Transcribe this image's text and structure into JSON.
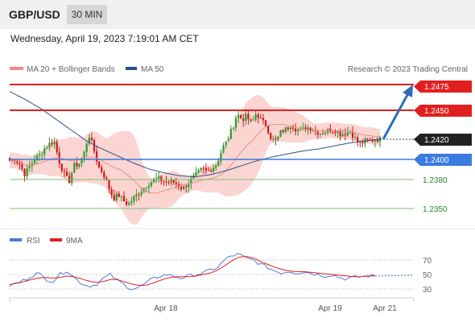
{
  "header": {
    "symbol": "GBP/USD",
    "timeframe": "30 MIN",
    "datetime": "Wednesday, April 19, 2023 7:19:01 AM CET"
  },
  "legend": {
    "ma20_bb": "MA 20 + Bollinger Bands",
    "ma50": "MA 50",
    "credit": "Research © 2023 Trading Central"
  },
  "colors": {
    "red_line": "#e02020",
    "blue_line": "#3a7be0",
    "green_line": "#7dbf73",
    "candle_up": "#2e9a2e",
    "candle_down": "#d01818",
    "bollinger": "#fbd5d2",
    "ma50": "#2d4f8a",
    "arrow": "#2f6db5",
    "rsi": "#4f7ad8",
    "rsi_ma": "#e02020"
  },
  "levels": {
    "r2": "1.2475",
    "r1": "1.2450",
    "current": "1.2420",
    "s1": "1.2400",
    "s2": "1.2380",
    "s3": "1.2350"
  },
  "rsi_panel": {
    "rsi_label": "RSI",
    "ma_label": "9MA",
    "ticks": [
      "70",
      "50",
      "30"
    ]
  },
  "chart_data": [
    {
      "type": "candlestick",
      "title": "GBP/USD",
      "timeframe": "30 MIN",
      "x_labels": [
        "Apr 18",
        "Apr 19",
        "Apr 21"
      ],
      "y_unit": "USD",
      "ylim": [
        1.2335,
        1.2485
      ],
      "horizontal_levels": [
        {
          "value": 1.2475,
          "kind": "resistance"
        },
        {
          "value": 1.245,
          "kind": "resistance"
        },
        {
          "value": 1.242,
          "kind": "current price"
        },
        {
          "value": 1.24,
          "kind": "pivot"
        },
        {
          "value": 1.238,
          "kind": "support"
        },
        {
          "value": 1.235,
          "kind": "support"
        }
      ],
      "projection": {
        "from": 1.242,
        "to": 1.2475
      },
      "close_path": [
        1.2398,
        1.24,
        1.2395,
        1.2385,
        1.2392,
        1.24,
        1.2403,
        1.241,
        1.2415,
        1.2418,
        1.2398,
        1.2385,
        1.2377,
        1.2393,
        1.2395,
        1.2404,
        1.2425,
        1.241,
        1.2392,
        1.2385,
        1.2372,
        1.236,
        1.2364,
        1.2358,
        1.2354,
        1.236,
        1.2365,
        1.237,
        1.2375,
        1.2378,
        1.238,
        1.2378,
        1.2376,
        1.2377,
        1.2374,
        1.237,
        1.2375,
        1.238,
        1.2385,
        1.239,
        1.2387,
        1.2391,
        1.2395,
        1.241,
        1.2418,
        1.243,
        1.2445,
        1.244,
        1.2443,
        1.2435,
        1.2447,
        1.2438,
        1.2434,
        1.242,
        1.2418,
        1.2428,
        1.243,
        1.2435,
        1.243,
        1.2428,
        1.2432,
        1.2431,
        1.2428,
        1.2426,
        1.2428,
        1.243,
        1.2429,
        1.2425,
        1.2426,
        1.2428,
        1.242,
        1.2415,
        1.2418,
        1.2418,
        1.242,
        1.242
      ],
      "ma50_path": [
        1.2468,
        1.246,
        1.2451,
        1.244,
        1.2429,
        1.2418,
        1.241,
        1.2403,
        1.2396,
        1.239,
        1.2386,
        1.2383,
        1.2382,
        1.2384,
        1.2388,
        1.2393,
        1.2398,
        1.2402,
        1.2405,
        1.2408,
        1.241,
        1.2413,
        1.2416,
        1.2418,
        1.242
      ]
    },
    {
      "type": "line",
      "title": "RSI",
      "series": [
        {
          "name": "RSI"
        },
        {
          "name": "9MA"
        }
      ],
      "yticks": [
        70,
        50,
        30
      ],
      "x_labels": [
        "Apr 18",
        "Apr 19",
        "Apr 21"
      ],
      "rsi_path": [
        35,
        38,
        42,
        48,
        52,
        44,
        40,
        50,
        56,
        46,
        38,
        34,
        36,
        44,
        50,
        42,
        36,
        30,
        32,
        38,
        44,
        48,
        50,
        47,
        45,
        48,
        50,
        52,
        56,
        60,
        70,
        76,
        78,
        72,
        70,
        64,
        60,
        55,
        52,
        55,
        52,
        54,
        52,
        50,
        48,
        50,
        46,
        44,
        46,
        47,
        48,
        48
      ],
      "ma_path": [
        36,
        38,
        40,
        43,
        45,
        46,
        45,
        46,
        48,
        47,
        44,
        41,
        39,
        40,
        43,
        43,
        40,
        37,
        35,
        35,
        38,
        42,
        45,
        47,
        47,
        47,
        48,
        50,
        52,
        56,
        62,
        69,
        74,
        75,
        73,
        68,
        64,
        60,
        57,
        55,
        54,
        54,
        53,
        52,
        51,
        50,
        49,
        48,
        47,
        47,
        48,
        48
      ]
    }
  ]
}
